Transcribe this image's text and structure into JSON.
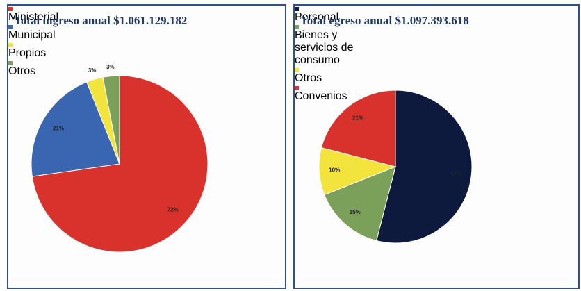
{
  "chart_data": [
    {
      "type": "pie",
      "title": "Total ingreso anual $1.061.129.182",
      "categories": [
        "Ministerial",
        "Municipal",
        "Propios",
        "Otros"
      ],
      "values": [
        72,
        21,
        3,
        3
      ],
      "value_labels": [
        "72%",
        "21%",
        "3%",
        "3%"
      ],
      "colors": [
        "#d9322d",
        "#3a65b0",
        "#f2e43c",
        "#7aa05a"
      ]
    },
    {
      "type": "pie",
      "title": "Total egreso anual $1.097.393.618",
      "categories": [
        "Personal",
        "Bienes y servicios de consumo",
        "Otros",
        "Convenios"
      ],
      "values": [
        54,
        15,
        10,
        21
      ],
      "value_labels": [
        "54%",
        "15%",
        "10%",
        "21%"
      ],
      "colors": [
        "#0d1a3d",
        "#7aa05a",
        "#f2e43c",
        "#d9322d"
      ]
    }
  ]
}
